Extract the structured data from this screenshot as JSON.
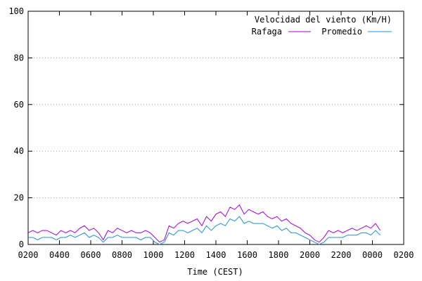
{
  "chart_data": {
    "type": "line",
    "title": "Velocidad del viento (Km/H)",
    "xlabel": "Time (CEST)",
    "ylabel": "",
    "ylim": [
      0,
      100
    ],
    "yticks": [
      "0",
      "20",
      "40",
      "60",
      "80",
      "100"
    ],
    "xlim": [
      0,
      24
    ],
    "xticks": [
      "0200",
      "0400",
      "0600",
      "0800",
      "1000",
      "1200",
      "1400",
      "1600",
      "1800",
      "2000",
      "2200",
      "0000",
      "0200"
    ],
    "grid": true,
    "legend_position": "top-right",
    "series": [
      {
        "name": "Rafaga",
        "color": "#a000d0",
        "x": [
          0.0,
          0.3,
          0.6,
          0.9,
          1.2,
          1.5,
          1.8,
          2.1,
          2.4,
          2.7,
          3.0,
          3.3,
          3.6,
          3.9,
          4.2,
          4.5,
          4.8,
          5.1,
          5.4,
          5.7,
          6.0,
          6.3,
          6.6,
          6.9,
          7.2,
          7.5,
          7.8,
          8.1,
          8.4,
          8.7,
          9.0,
          9.3,
          9.6,
          9.9,
          10.2,
          10.5,
          10.8,
          11.1,
          11.4,
          11.7,
          12.0,
          12.3,
          12.6,
          12.9,
          13.2,
          13.5,
          13.8,
          14.1,
          14.4,
          14.7,
          15.0,
          15.3,
          15.6,
          15.9,
          16.2,
          16.5,
          16.8,
          17.1,
          17.4,
          17.7,
          18.0,
          18.3,
          18.6,
          18.9,
          19.2,
          19.5,
          19.8,
          20.1,
          20.4,
          20.7,
          21.0,
          21.3,
          21.6,
          21.9,
          22.2,
          22.5
        ],
        "values": [
          5,
          6,
          5,
          6,
          6,
          5,
          4,
          6,
          5,
          6,
          5,
          7,
          8,
          6,
          7,
          5,
          2,
          6,
          5,
          7,
          6,
          5,
          6,
          5,
          5,
          6,
          5,
          3,
          1,
          2,
          8,
          7,
          9,
          10,
          9,
          10,
          11,
          8,
          12,
          10,
          13,
          14,
          12,
          16,
          15,
          17,
          13,
          15,
          14,
          13,
          14,
          12,
          11,
          12,
          10,
          11,
          9,
          8,
          7,
          5,
          4,
          2,
          1,
          3,
          6,
          5,
          6,
          5,
          6,
          7,
          6,
          7,
          8,
          7,
          9,
          6
        ]
      },
      {
        "name": "Promedio",
        "color": "#1e8ed8",
        "x": [
          0.0,
          0.3,
          0.6,
          0.9,
          1.2,
          1.5,
          1.8,
          2.1,
          2.4,
          2.7,
          3.0,
          3.3,
          3.6,
          3.9,
          4.2,
          4.5,
          4.8,
          5.1,
          5.4,
          5.7,
          6.0,
          6.3,
          6.6,
          6.9,
          7.2,
          7.5,
          7.8,
          8.1,
          8.4,
          8.7,
          9.0,
          9.3,
          9.6,
          9.9,
          10.2,
          10.5,
          10.8,
          11.1,
          11.4,
          11.7,
          12.0,
          12.3,
          12.6,
          12.9,
          13.2,
          13.5,
          13.8,
          14.1,
          14.4,
          14.7,
          15.0,
          15.3,
          15.6,
          15.9,
          16.2,
          16.5,
          16.8,
          17.1,
          17.4,
          17.7,
          18.0,
          18.3,
          18.6,
          18.9,
          19.2,
          19.5,
          19.8,
          20.1,
          20.4,
          20.7,
          21.0,
          21.3,
          21.6,
          21.9,
          22.2,
          22.5
        ],
        "values": [
          3,
          3,
          2,
          3,
          3,
          3,
          2,
          3,
          3,
          4,
          3,
          4,
          5,
          3,
          4,
          3,
          1,
          3,
          3,
          4,
          3,
          3,
          3,
          3,
          2,
          3,
          3,
          1,
          0,
          1,
          5,
          4,
          6,
          6,
          5,
          6,
          7,
          5,
          8,
          6,
          8,
          9,
          8,
          11,
          10,
          12,
          9,
          10,
          9,
          9,
          9,
          8,
          7,
          8,
          6,
          7,
          5,
          5,
          4,
          3,
          2,
          1,
          0,
          1,
          3,
          3,
          3,
          3,
          4,
          4,
          4,
          5,
          5,
          4,
          6,
          4
        ]
      }
    ]
  }
}
